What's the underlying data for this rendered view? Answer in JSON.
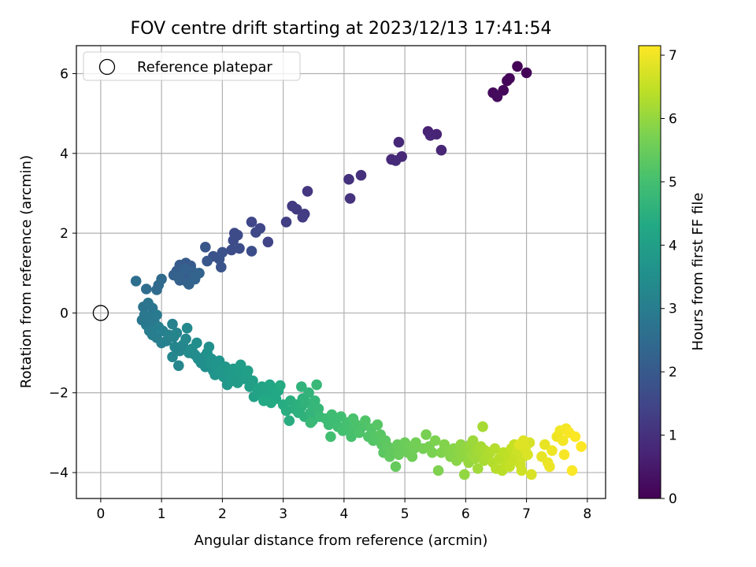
{
  "chart_data": {
    "type": "scatter",
    "title": "FOV centre drift starting at 2023/12/13 17:41:54",
    "xlabel": "Angular distance from reference (arcmin)",
    "ylabel": "Rotation from reference (arcmin)",
    "xlim": [
      -0.4,
      8.3
    ],
    "ylim": [
      -4.65,
      6.7
    ],
    "xticks": [
      0,
      1,
      2,
      3,
      4,
      5,
      6,
      7,
      8
    ],
    "yticks": [
      -4,
      -2,
      0,
      2,
      4,
      6
    ],
    "xtick_labels": [
      "0",
      "1",
      "2",
      "3",
      "4",
      "5",
      "6",
      "7",
      "8"
    ],
    "ytick_labels": [
      "−4",
      "−2",
      "0",
      "2",
      "4",
      "6"
    ],
    "grid": true,
    "legend": {
      "position": "top-left",
      "label": "Reference platepar"
    },
    "reference_point": {
      "x": 0,
      "y": 0
    },
    "colormap": "viridis",
    "colorbar": {
      "label": "Hours from first FF file",
      "range": [
        0,
        7.15
      ],
      "ticks": [
        0,
        1,
        2,
        3,
        4,
        5,
        6,
        7
      ],
      "tick_labels": [
        "0",
        "1",
        "2",
        "3",
        "4",
        "5",
        "6",
        "7"
      ]
    },
    "points": [
      [
        6.85,
        6.18,
        0.05
      ],
      [
        7.0,
        6.02,
        0.08
      ],
      [
        6.72,
        5.88,
        0.1
      ],
      [
        6.68,
        5.82,
        0.12
      ],
      [
        6.62,
        5.58,
        0.15
      ],
      [
        6.45,
        5.52,
        0.18
      ],
      [
        6.52,
        5.42,
        0.2
      ],
      [
        5.38,
        4.55,
        0.7
      ],
      [
        5.52,
        4.48,
        0.72
      ],
      [
        5.42,
        4.45,
        0.74
      ],
      [
        5.6,
        4.08,
        0.76
      ],
      [
        4.9,
        4.28,
        0.8
      ],
      [
        4.95,
        3.92,
        0.83
      ],
      [
        4.78,
        3.85,
        0.86
      ],
      [
        4.85,
        3.82,
        0.88
      ],
      [
        4.28,
        3.45,
        1.0
      ],
      [
        4.08,
        3.35,
        1.03
      ],
      [
        4.1,
        2.87,
        1.06
      ],
      [
        3.4,
        3.05,
        1.15
      ],
      [
        3.15,
        2.68,
        1.2
      ],
      [
        3.22,
        2.6,
        1.22
      ],
      [
        3.35,
        2.48,
        1.25
      ],
      [
        3.32,
        2.4,
        1.27
      ],
      [
        3.05,
        2.28,
        1.3
      ],
      [
        2.75,
        1.78,
        1.45
      ],
      [
        2.62,
        2.12,
        1.5
      ],
      [
        2.48,
        2.28,
        1.52
      ],
      [
        2.55,
        2.02,
        1.55
      ],
      [
        2.2,
        2.0,
        1.6
      ],
      [
        2.25,
        1.95,
        1.62
      ],
      [
        2.18,
        1.82,
        1.64
      ],
      [
        2.15,
        1.58,
        1.66
      ],
      [
        2.28,
        1.62,
        1.68
      ],
      [
        2.48,
        1.55,
        1.7
      ],
      [
        2.0,
        1.52,
        1.8
      ],
      [
        1.95,
        1.35,
        1.82
      ],
      [
        1.85,
        1.42,
        1.84
      ],
      [
        1.98,
        1.15,
        1.86
      ],
      [
        1.72,
        1.65,
        1.9
      ],
      [
        1.75,
        1.3,
        1.92
      ],
      [
        1.3,
        1.2,
        2.0
      ],
      [
        1.4,
        1.25,
        2.02
      ],
      [
        1.48,
        1.18,
        2.04
      ],
      [
        1.25,
        1.05,
        2.06
      ],
      [
        1.35,
        1.0,
        2.08
      ],
      [
        1.45,
        0.95,
        2.1
      ],
      [
        1.52,
        0.9,
        2.12
      ],
      [
        1.3,
        0.82,
        2.14
      ],
      [
        1.42,
        0.78,
        2.16
      ],
      [
        1.2,
        0.95,
        2.18
      ],
      [
        1.38,
        1.1,
        2.2
      ],
      [
        1.5,
        1.05,
        2.22
      ],
      [
        1.28,
        0.88,
        2.24
      ],
      [
        1.45,
        0.72,
        2.26
      ],
      [
        1.62,
        1.0,
        2.28
      ],
      [
        1.55,
        0.85,
        2.3
      ],
      [
        1.0,
        0.85,
        2.45
      ],
      [
        0.95,
        0.7,
        2.48
      ],
      [
        0.92,
        0.58,
        2.5
      ],
      [
        0.75,
        0.6,
        2.55
      ],
      [
        0.58,
        0.8,
        2.6
      ],
      [
        0.7,
        0.15,
        2.75
      ],
      [
        0.78,
        0.25,
        2.78
      ],
      [
        0.85,
        0.12,
        2.8
      ],
      [
        0.72,
        -0.05,
        2.82
      ],
      [
        0.68,
        -0.18,
        2.84
      ],
      [
        0.8,
        -0.1,
        2.86
      ],
      [
        0.88,
        -0.22,
        2.88
      ],
      [
        0.75,
        -0.3,
        2.9
      ],
      [
        0.92,
        -0.05,
        2.92
      ],
      [
        0.8,
        -0.45,
        3.0
      ],
      [
        0.85,
        -0.55,
        3.02
      ],
      [
        0.92,
        -0.62,
        3.04
      ],
      [
        0.95,
        -0.35,
        3.06
      ],
      [
        1.02,
        -0.45,
        3.08
      ],
      [
        1.0,
        -0.75,
        3.1
      ],
      [
        1.08,
        -0.7,
        3.12
      ],
      [
        1.12,
        -0.55,
        3.14
      ],
      [
        1.18,
        -0.28,
        3.16
      ],
      [
        1.2,
        -0.6,
        3.18
      ],
      [
        1.25,
        -0.5,
        3.2
      ],
      [
        1.22,
        -0.85,
        3.22
      ],
      [
        1.3,
        -0.95,
        3.24
      ],
      [
        1.18,
        -1.1,
        3.26
      ],
      [
        1.28,
        -1.32,
        3.28
      ],
      [
        1.35,
        -0.8,
        3.3
      ],
      [
        1.4,
        -0.65,
        3.32
      ],
      [
        1.42,
        -0.38,
        3.34
      ],
      [
        1.45,
        -1.0,
        3.4
      ],
      [
        1.5,
        -0.9,
        3.42
      ],
      [
        1.55,
        -1.05,
        3.44
      ],
      [
        1.6,
        -1.15,
        3.46
      ],
      [
        1.58,
        -0.75,
        3.48
      ],
      [
        1.65,
        -1.25,
        3.5
      ],
      [
        1.7,
        -1.1,
        3.52
      ],
      [
        1.72,
        -1.35,
        3.54
      ],
      [
        1.78,
        -0.85,
        3.56
      ],
      [
        1.75,
        -1.0,
        3.58
      ],
      [
        1.8,
        -1.25,
        3.6
      ],
      [
        1.85,
        -1.45,
        3.62
      ],
      [
        1.82,
        -1.15,
        3.64
      ],
      [
        1.9,
        -1.3,
        3.66
      ],
      [
        1.88,
        -1.55,
        3.68
      ],
      [
        1.95,
        -1.2,
        3.7
      ],
      [
        1.98,
        -1.45,
        3.72
      ],
      [
        2.02,
        -1.6,
        3.74
      ],
      [
        2.05,
        -1.35,
        3.76
      ],
      [
        2.08,
        -1.8,
        3.8
      ],
      [
        2.1,
        -1.5,
        3.82
      ],
      [
        2.15,
        -1.7,
        3.84
      ],
      [
        2.18,
        -1.4,
        3.86
      ],
      [
        2.2,
        -1.6,
        3.88
      ],
      [
        2.25,
        -1.75,
        3.9
      ],
      [
        2.28,
        -1.5,
        3.92
      ],
      [
        2.3,
        -1.3,
        3.94
      ],
      [
        2.35,
        -1.65,
        3.96
      ],
      [
        2.4,
        -1.55,
        3.98
      ],
      [
        2.45,
        -1.85,
        4.0
      ],
      [
        2.5,
        -1.7,
        4.02
      ],
      [
        2.42,
        -1.45,
        4.04
      ],
      [
        2.52,
        -2.1,
        4.08
      ],
      [
        2.58,
        -1.9,
        4.1
      ],
      [
        2.62,
        -2.05,
        4.12
      ],
      [
        2.65,
        -1.85,
        4.14
      ],
      [
        2.7,
        -2.0,
        4.16
      ],
      [
        2.72,
        -1.9,
        4.18
      ],
      [
        2.75,
        -2.1,
        4.2
      ],
      [
        2.78,
        -1.8,
        4.22
      ],
      [
        2.82,
        -2.0,
        4.24
      ],
      [
        2.85,
        -1.9,
        4.26
      ],
      [
        2.88,
        -2.15,
        4.28
      ],
      [
        2.92,
        -1.95,
        4.3
      ],
      [
        2.68,
        -2.2,
        4.32
      ],
      [
        2.8,
        -2.25,
        4.34
      ],
      [
        2.95,
        -1.82,
        4.36
      ],
      [
        3.0,
        -2.3,
        4.4
      ],
      [
        3.05,
        -2.45,
        4.42
      ],
      [
        3.1,
        -2.7,
        4.44
      ],
      [
        3.12,
        -2.2,
        4.46
      ],
      [
        3.18,
        -2.4,
        4.48
      ],
      [
        3.22,
        -2.3,
        4.5
      ],
      [
        3.25,
        -2.5,
        4.52
      ],
      [
        3.3,
        -2.35,
        4.54
      ],
      [
        3.32,
        -2.15,
        4.56
      ],
      [
        3.35,
        -2.6,
        4.58
      ],
      [
        3.38,
        -2.25,
        4.6
      ],
      [
        3.3,
        -1.85,
        4.62
      ],
      [
        3.42,
        -2.0,
        4.64
      ],
      [
        3.45,
        -2.5,
        4.66
      ],
      [
        3.5,
        -2.35,
        4.68
      ],
      [
        3.48,
        -2.7,
        4.7
      ],
      [
        3.52,
        -2.2,
        4.72
      ],
      [
        3.58,
        -2.4,
        4.74
      ],
      [
        3.55,
        -1.8,
        4.76
      ],
      [
        3.45,
        -2.75,
        4.78
      ],
      [
        3.6,
        -2.6,
        4.8
      ],
      [
        3.7,
        -2.65,
        4.85
      ],
      [
        3.75,
        -2.8,
        4.87
      ],
      [
        3.8,
        -2.55,
        4.89
      ],
      [
        3.85,
        -2.7,
        4.91
      ],
      [
        3.9,
        -2.85,
        4.93
      ],
      [
        3.95,
        -2.6,
        4.95
      ],
      [
        3.78,
        -3.1,
        4.97
      ],
      [
        3.98,
        -2.95,
        4.99
      ],
      [
        4.05,
        -2.75,
        5.01
      ],
      [
        4.1,
        -2.9,
        5.03
      ],
      [
        4.12,
        -3.1,
        5.05
      ],
      [
        4.15,
        -2.65,
        5.07
      ],
      [
        4.2,
        -2.8,
        5.1
      ],
      [
        4.25,
        -3.0,
        5.12
      ],
      [
        4.3,
        -2.85,
        5.14
      ],
      [
        4.35,
        -2.7,
        5.16
      ],
      [
        4.4,
        -3.1,
        5.18
      ],
      [
        4.45,
        -2.9,
        5.2
      ],
      [
        4.48,
        -3.2,
        5.22
      ],
      [
        4.52,
        -3.1,
        5.24
      ],
      [
        4.55,
        -2.8,
        5.26
      ],
      [
        4.6,
        -3.05,
        5.28
      ],
      [
        4.62,
        -3.3,
        5.3
      ],
      [
        4.65,
        -3.5,
        5.32
      ],
      [
        4.68,
        -3.2,
        5.34
      ],
      [
        4.72,
        -3.35,
        5.38
      ],
      [
        4.75,
        -3.6,
        5.4
      ],
      [
        4.8,
        -3.45,
        5.42
      ],
      [
        4.85,
        -3.85,
        5.44
      ],
      [
        4.88,
        -3.3,
        5.46
      ],
      [
        4.9,
        -3.55,
        5.48
      ],
      [
        4.95,
        -3.4,
        5.5
      ],
      [
        5.0,
        -3.25,
        5.52
      ],
      [
        5.05,
        -3.5,
        5.54
      ],
      [
        5.08,
        -3.35,
        5.56
      ],
      [
        5.12,
        -3.6,
        5.58
      ],
      [
        5.15,
        -3.4,
        5.6
      ],
      [
        5.18,
        -3.25,
        5.62
      ],
      [
        5.3,
        -3.4,
        5.66
      ],
      [
        5.35,
        -3.05,
        5.68
      ],
      [
        5.4,
        -3.35,
        5.7
      ],
      [
        5.45,
        -3.5,
        5.72
      ],
      [
        5.5,
        -3.2,
        5.74
      ],
      [
        5.55,
        -3.95,
        5.76
      ],
      [
        5.6,
        -3.5,
        5.78
      ],
      [
        5.65,
        -3.3,
        5.8
      ],
      [
        5.7,
        -3.45,
        5.82
      ],
      [
        5.75,
        -3.6,
        5.84
      ],
      [
        5.8,
        -3.4,
        5.86
      ],
      [
        5.85,
        -3.7,
        5.88
      ],
      [
        5.9,
        -3.5,
        5.92
      ],
      [
        5.92,
        -3.3,
        5.94
      ],
      [
        5.95,
        -3.6,
        5.96
      ],
      [
        5.98,
        -4.05,
        5.98
      ],
      [
        6.02,
        -3.45,
        6.0
      ],
      [
        6.05,
        -3.75,
        6.02
      ],
      [
        6.08,
        -3.3,
        6.04
      ],
      [
        6.1,
        -3.55,
        6.06
      ],
      [
        6.12,
        -3.2,
        6.08
      ],
      [
        6.15,
        -3.65,
        6.1
      ],
      [
        6.18,
        -3.4,
        6.12
      ],
      [
        6.2,
        -3.9,
        6.14
      ],
      [
        6.22,
        -3.5,
        6.16
      ],
      [
        6.25,
        -3.35,
        6.18
      ],
      [
        6.28,
        -2.85,
        6.2
      ],
      [
        6.3,
        -3.7,
        6.22
      ],
      [
        6.32,
        -3.45,
        6.24
      ],
      [
        6.35,
        -3.6,
        6.26
      ],
      [
        6.4,
        -3.5,
        6.3
      ],
      [
        6.45,
        -3.75,
        6.32
      ],
      [
        6.48,
        -3.4,
        6.34
      ],
      [
        6.5,
        -3.9,
        6.36
      ],
      [
        6.55,
        -3.65,
        6.38
      ],
      [
        6.6,
        -3.95,
        6.4
      ],
      [
        6.62,
        -3.5,
        6.42
      ],
      [
        6.65,
        -3.8,
        6.44
      ],
      [
        6.7,
        -3.6,
        6.46
      ],
      [
        6.72,
        -3.85,
        6.48
      ],
      [
        6.75,
        -3.4,
        6.5
      ],
      [
        6.78,
        -3.7,
        6.52
      ],
      [
        6.8,
        -3.3,
        6.54
      ],
      [
        6.82,
        -3.55,
        6.56
      ],
      [
        6.85,
        -3.45,
        6.58
      ],
      [
        6.9,
        -3.8,
        6.6
      ],
      [
        6.92,
        -3.95,
        6.62
      ],
      [
        6.95,
        -3.6,
        6.64
      ],
      [
        7.0,
        -3.3,
        6.7
      ],
      [
        7.05,
        -3.25,
        6.72
      ],
      [
        7.08,
        -4.05,
        6.74
      ],
      [
        7.02,
        -3.55,
        6.76
      ],
      [
        6.98,
        -3.4,
        6.78
      ],
      [
        6.88,
        -3.3,
        6.8
      ],
      [
        6.95,
        -3.2,
        6.82
      ],
      [
        7.25,
        -3.6,
        6.9
      ],
      [
        7.3,
        -3.3,
        6.92
      ],
      [
        7.35,
        -3.75,
        6.94
      ],
      [
        7.38,
        -3.85,
        6.96
      ],
      [
        7.42,
        -3.45,
        6.98
      ],
      [
        7.5,
        -3.1,
        7.0
      ],
      [
        7.55,
        -2.95,
        7.02
      ],
      [
        7.6,
        -3.2,
        7.04
      ],
      [
        7.65,
        -2.9,
        7.06
      ],
      [
        7.62,
        -3.55,
        7.08
      ],
      [
        7.7,
        -3.0,
        7.1
      ],
      [
        7.75,
        -3.95,
        7.12
      ],
      [
        7.8,
        -3.1,
        7.14
      ],
      [
        7.9,
        -3.35,
        7.15
      ]
    ]
  }
}
